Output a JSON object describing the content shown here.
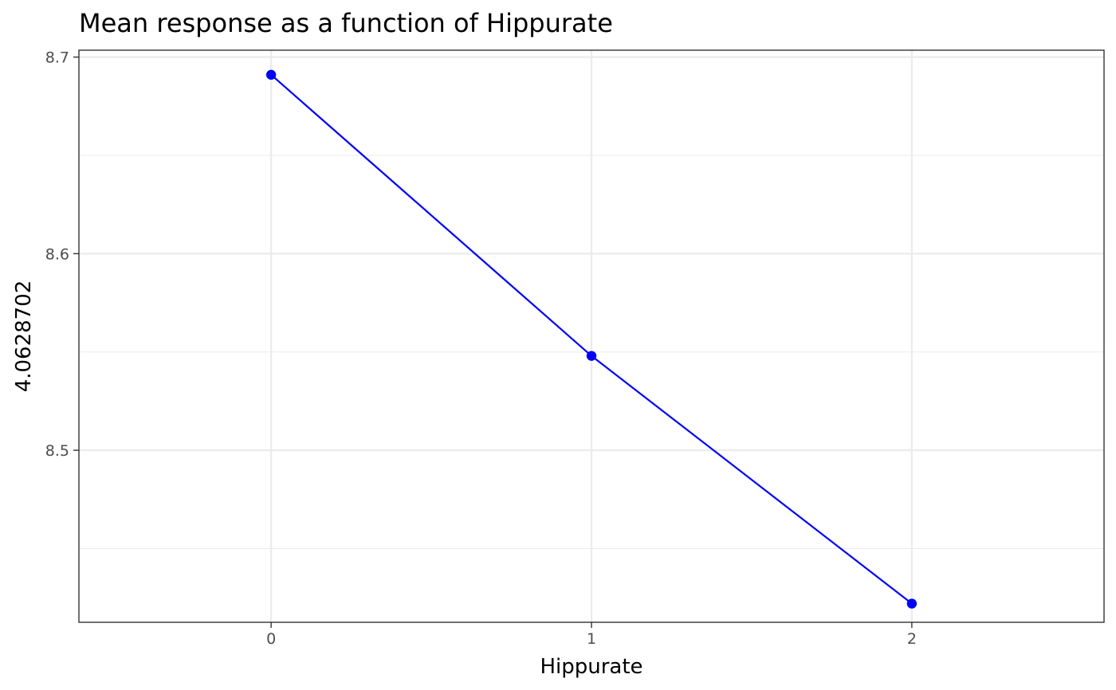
{
  "chart_data": {
    "type": "line",
    "title": "Mean response as a function of Hippurate",
    "xlabel": "Hippurate",
    "ylabel": "4.0628702",
    "x": [
      0,
      1,
      2
    ],
    "series": [
      {
        "values": [
          8.691,
          8.548,
          8.422
        ],
        "color": "#0000ff"
      }
    ],
    "xlim": [
      -0.6,
      2.6
    ],
    "ylim": [
      8.4125,
      8.7035
    ],
    "x_ticks": [
      0,
      1,
      2
    ],
    "x_tick_labels": [
      "0",
      "1",
      "2"
    ],
    "y_ticks": [
      8.5,
      8.6,
      8.7
    ],
    "y_tick_labels": [
      "8.5",
      "8.6",
      "8.7"
    ],
    "y_minor_ticks": [
      8.45,
      8.55,
      8.65
    ],
    "grid": true,
    "legend": "none"
  }
}
